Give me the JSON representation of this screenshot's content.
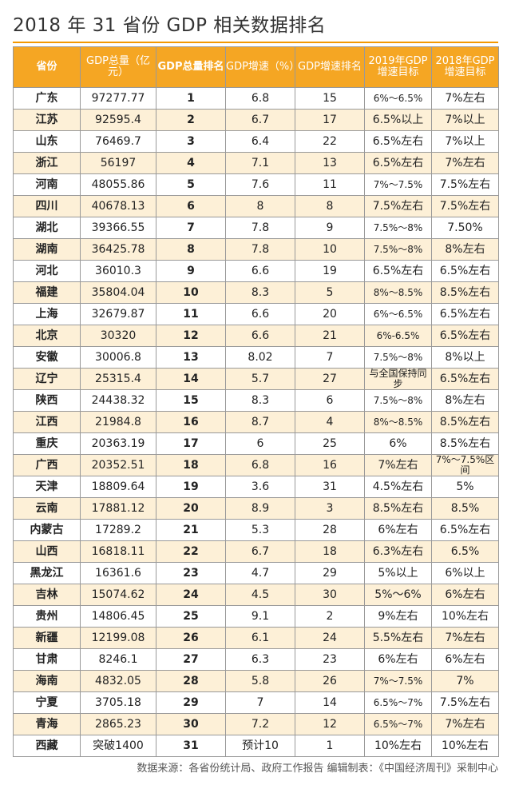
{
  "title": "2018 年 31 省份 GDP 相关数据排名",
  "columns": [
    "省份",
    "GDP总量（亿元）",
    "GDP总量排名",
    "GDP增速（%）",
    "GDP增速排名",
    "2019年GDP增速目标",
    "2018年GDP增速目标"
  ],
  "rows": [
    [
      "广东",
      "97277.77",
      "1",
      "6.8",
      "15",
      "6%～6.5%",
      "7%左右"
    ],
    [
      "江苏",
      "92595.4",
      "2",
      "6.7",
      "17",
      "6.5%以上",
      "7%以上"
    ],
    [
      "山东",
      "76469.7",
      "3",
      "6.4",
      "22",
      "6.5%左右",
      "7%以上"
    ],
    [
      "浙江",
      "56197",
      "4",
      "7.1",
      "13",
      "6.5%左右",
      "7%左右"
    ],
    [
      "河南",
      "48055.86",
      "5",
      "7.6",
      "11",
      "7%～7.5%",
      "7.5%左右"
    ],
    [
      "四川",
      "40678.13",
      "6",
      "8",
      "8",
      "7.5%左右",
      "7.5%左右"
    ],
    [
      "湖北",
      "39366.55",
      "7",
      "7.8",
      "9",
      "7.5%～8%",
      "7.50%"
    ],
    [
      "湖南",
      "36425.78",
      "8",
      "7.8",
      "10",
      "7.5%～8%",
      "8%左右"
    ],
    [
      "河北",
      "36010.3",
      "9",
      "6.6",
      "19",
      "6.5%左右",
      "6.5%左右"
    ],
    [
      "福建",
      "35804.04",
      "10",
      "8.3",
      "5",
      "8%～8.5%",
      "8.5%左右"
    ],
    [
      "上海",
      "32679.87",
      "11",
      "6.6",
      "20",
      "6%～6.5%",
      "6.5%左右"
    ],
    [
      "北京",
      "30320",
      "12",
      "6.6",
      "21",
      "6%-6.5%",
      "6.5%左右"
    ],
    [
      "安徽",
      "30006.8",
      "13",
      "8.02",
      "7",
      "7.5%～8%",
      "8%以上"
    ],
    [
      "辽宁",
      "25315.4",
      "14",
      "5.7",
      "27",
      "与全国保持同步",
      "6.5%左右"
    ],
    [
      "陕西",
      "24438.32",
      "15",
      "8.3",
      "6",
      "7.5%～8%",
      "8%左右"
    ],
    [
      "江西",
      "21984.8",
      "16",
      "8.7",
      "4",
      "8%～8.5%",
      "8.5%左右"
    ],
    [
      "重庆",
      "20363.19",
      "17",
      "6",
      "25",
      "6%",
      "8.5%左右"
    ],
    [
      "广西",
      "20352.51",
      "18",
      "6.8",
      "16",
      "7%左右",
      "7%～7.5%区间"
    ],
    [
      "天津",
      "18809.64",
      "19",
      "3.6",
      "31",
      "4.5%左右",
      "5%"
    ],
    [
      "云南",
      "17881.12",
      "20",
      "8.9",
      "3",
      "8.5%左右",
      "8.5%"
    ],
    [
      "内蒙古",
      "17289.2",
      "21",
      "5.3",
      "28",
      "6%左右",
      "6.5%左右"
    ],
    [
      "山西",
      "16818.11",
      "22",
      "6.7",
      "18",
      "6.3%左右",
      "6.5%"
    ],
    [
      "黑龙江",
      "16361.6",
      "23",
      "4.7",
      "29",
      "5%以上",
      "6%以上"
    ],
    [
      "吉林",
      "15074.62",
      "24",
      "4.5",
      "30",
      "5%～6%",
      "6%左右"
    ],
    [
      "贵州",
      "14806.45",
      "25",
      "9.1",
      "2",
      "9%左右",
      "10%左右"
    ],
    [
      "新疆",
      "12199.08",
      "26",
      "6.1",
      "24",
      "5.5%左右",
      "7%左右"
    ],
    [
      "甘肃",
      "8246.1",
      "27",
      "6.3",
      "23",
      "6%左右",
      "6%左右"
    ],
    [
      "海南",
      "4832.05",
      "28",
      "5.8",
      "26",
      "7%～7.5%",
      "7%"
    ],
    [
      "宁夏",
      "3705.18",
      "29",
      "7",
      "14",
      "6.5%～7%",
      "7.5%左右"
    ],
    [
      "青海",
      "2865.23",
      "30",
      "7.2",
      "12",
      "6.5%～7%",
      "7%左右"
    ],
    [
      "西藏",
      "突破1400",
      "31",
      "预计10",
      "1",
      "10%左右",
      "10%左右"
    ]
  ],
  "footer": "数据来源：各省份统计局、政府工作报告  编辑制表：《中国经济周刊》采制中心",
  "colors": {
    "header_bg": "#f5a623",
    "stripe_bg": "#fdf0d7",
    "accent": "#f39800"
  }
}
